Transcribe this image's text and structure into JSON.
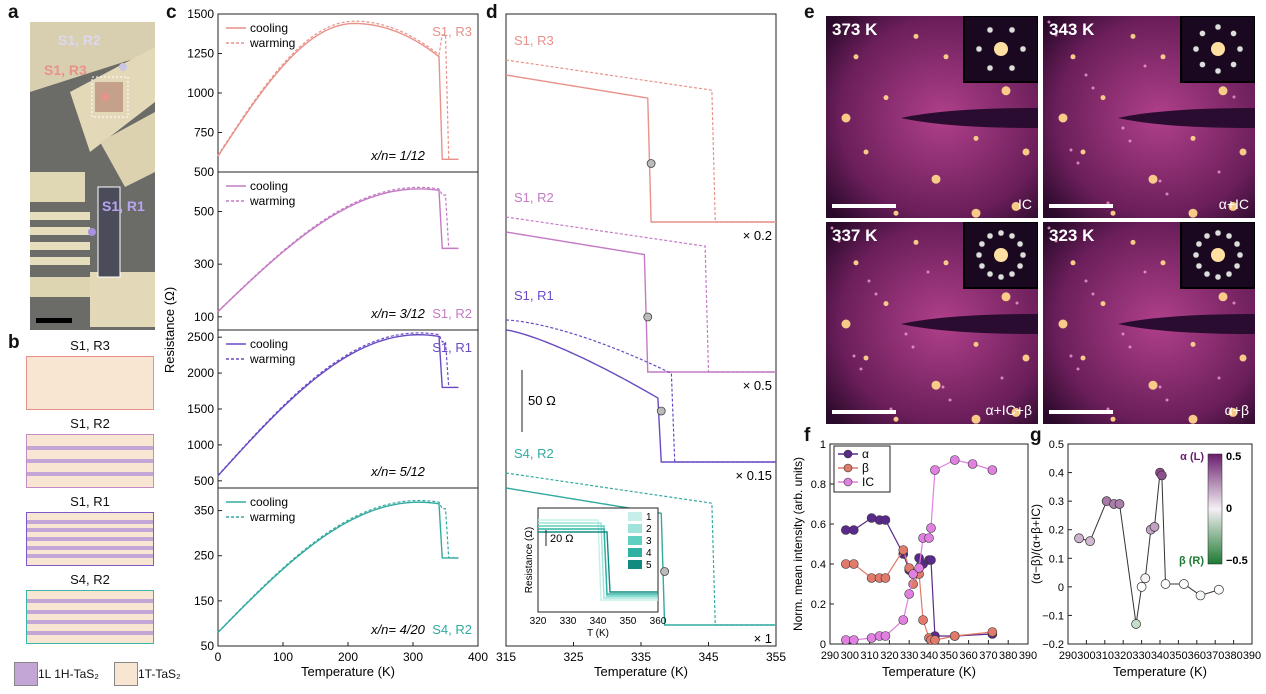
{
  "panel_letters": [
    "a",
    "b",
    "c",
    "d",
    "e",
    "f",
    "g"
  ],
  "panel_a": {
    "labels": [
      "S1, R2",
      "S1, R3",
      "S1, R1"
    ]
  },
  "panel_b": {
    "devices": [
      {
        "name": "S1, R3",
        "color": "#e8928a",
        "stripes": 0
      },
      {
        "name": "S1, R2",
        "color": "#c68cc8",
        "stripes": 3
      },
      {
        "name": "S1, R1",
        "color": "#7a5ac8",
        "stripes": 5
      },
      {
        "name": "S4, R2",
        "color": "#3cb4a8",
        "stripes": 4
      }
    ],
    "legend": [
      {
        "label": "1L 1H-TaS₂",
        "color": "#c4a6d6"
      },
      {
        "label": "1T-TaS₂",
        "color": "#f9e6d2"
      }
    ]
  },
  "panel_c": {
    "xlabel": "Temperature (K)",
    "ylabel": "Resistance (Ω)",
    "xticks": [
      "0",
      "100",
      "200",
      "300",
      "400"
    ],
    "legend": [
      "cooling",
      "warming"
    ],
    "subplots": [
      {
        "tag": "S1, R3",
        "ratio": "x/n= 1/12",
        "color": "#e8928a",
        "yticks": [
          "500",
          "750",
          "1000",
          "1250",
          "1500"
        ],
        "ylim": [
          500,
          1500
        ],
        "peak": 1440,
        "start": 600,
        "after": 580
      },
      {
        "tag": "S1, R2",
        "ratio": "x/n= 3/12",
        "color": "#c47ac4",
        "yticks": [
          "100",
          "300",
          "500"
        ],
        "ylim": [
          50,
          650
        ],
        "peak": 580,
        "start": 120,
        "after": 360
      },
      {
        "tag": "S1, R1",
        "ratio": "x/n= 5/12",
        "color": "#6a4ac4",
        "yticks": [
          "500",
          "1000",
          "1500",
          "2000",
          "2500"
        ],
        "ylim": [
          400,
          2600
        ],
        "peak": 2510,
        "start": 570,
        "after": 1800
      },
      {
        "tag": "S4, R2",
        "ratio": "x/n= 4/20",
        "color": "#33aaa0",
        "yticks": [
          "50",
          "150",
          "250",
          "350"
        ],
        "ylim": [
          50,
          400
        ],
        "peak": 365,
        "start": 80,
        "after": 245
      }
    ]
  },
  "panel_d": {
    "xlabel": "Temperature (K)",
    "xticks": [
      "315",
      "325",
      "335",
      "345",
      "355"
    ],
    "curves": [
      {
        "tag": "S1, R3",
        "scale": "× 0.2",
        "color": "#e8928a"
      },
      {
        "tag": "S1, R2",
        "scale": "× 0.5",
        "color": "#c47ac4"
      },
      {
        "tag": "S1, R1",
        "scale": "× 0.15",
        "color": "#6a4ac4"
      },
      {
        "tag": "S4, R2",
        "scale": "× 1",
        "color": "#33aaa0"
      }
    ],
    "scalebar": "50 Ω",
    "inset": {
      "ylabel": "Resistance (Ω)",
      "xlabel": "T (K)",
      "xticks": [
        "320",
        "330",
        "340",
        "350",
        "360"
      ],
      "scalebar": "20 Ω",
      "legend": [
        "1",
        "2",
        "3",
        "4",
        "5"
      ],
      "colors": [
        "#c6efea",
        "#9fe3da",
        "#5fcfc2",
        "#2fb2a4",
        "#118a7f"
      ]
    }
  },
  "panel_e": {
    "tiles": [
      {
        "temp": "373 K",
        "phase": "IC"
      },
      {
        "temp": "343 K",
        "phase": "α+IC"
      },
      {
        "temp": "337 K",
        "phase": "α+IC+β"
      },
      {
        "temp": "323 K",
        "phase": "α+β"
      }
    ]
  },
  "panel_f": {
    "xlabel": "Temperature (K)",
    "ylabel": "Norm. mean intensity (arb. units)",
    "xticks": [
      "290",
      "300",
      "310",
      "320",
      "330",
      "340",
      "350",
      "360",
      "370",
      "380",
      "390"
    ],
    "yticks": [
      "0",
      "0.2",
      "0.4",
      "0.6",
      "0.8",
      "1"
    ],
    "legend": [
      "α",
      "β",
      "IC"
    ],
    "chart_data": {
      "type": "line",
      "series": [
        {
          "name": "α",
          "color": "#5a2a8a",
          "x": [
            298,
            302,
            311,
            315,
            318,
            327,
            330,
            332,
            335,
            337,
            340,
            341,
            343,
            353,
            372
          ],
          "y": [
            0.57,
            0.57,
            0.63,
            0.62,
            0.62,
            0.45,
            0.37,
            0.35,
            0.43,
            0.4,
            0.42,
            0.42,
            0.04,
            0.04,
            0.05
          ]
        },
        {
          "name": "β",
          "color": "#e07a6a",
          "x": [
            298,
            302,
            311,
            315,
            318,
            327,
            330,
            332,
            335,
            337,
            340,
            341,
            343,
            353,
            372
          ],
          "y": [
            0.4,
            0.4,
            0.33,
            0.33,
            0.33,
            0.47,
            0.38,
            0.3,
            0.35,
            0.12,
            0.03,
            0.02,
            0.02,
            0.04,
            0.06
          ]
        },
        {
          "name": "IC",
          "color": "#e080e0",
          "x": [
            298,
            302,
            311,
            315,
            318,
            327,
            330,
            332,
            335,
            337,
            340,
            341,
            343,
            353,
            362,
            372
          ],
          "y": [
            0.02,
            0.02,
            0.03,
            0.04,
            0.04,
            0.12,
            0.25,
            0.35,
            0.38,
            0.53,
            0.53,
            0.58,
            0.87,
            0.92,
            0.9,
            0.87
          ]
        }
      ]
    }
  },
  "panel_g": {
    "xlabel": "Temperature (K)",
    "ylabel": "(α−β)/(α+β+IC)",
    "xticks": [
      "290",
      "300",
      "310",
      "320",
      "330",
      "340",
      "350",
      "360",
      "370",
      "380",
      "390"
    ],
    "yticks": [
      "−0.2",
      "−0.1",
      "0",
      "0.1",
      "0.2",
      "0.3",
      "0.4",
      "0.5"
    ],
    "colorbar": {
      "top": "α (L)",
      "bottom": "β (R)",
      "ticks": [
        "0.5",
        "0",
        "−0.5"
      ]
    },
    "chart_data": {
      "type": "scatter",
      "series": [
        {
          "x": [
            296,
            302,
            311,
            315,
            318,
            327,
            330,
            332,
            335,
            337,
            340,
            341,
            343,
            353,
            362,
            372
          ],
          "y": [
            0.17,
            0.16,
            0.3,
            0.29,
            0.29,
            -0.13,
            0.0,
            0.03,
            0.2,
            0.21,
            0.4,
            0.39,
            0.01,
            0.01,
            -0.03,
            -0.01
          ]
        }
      ]
    }
  }
}
